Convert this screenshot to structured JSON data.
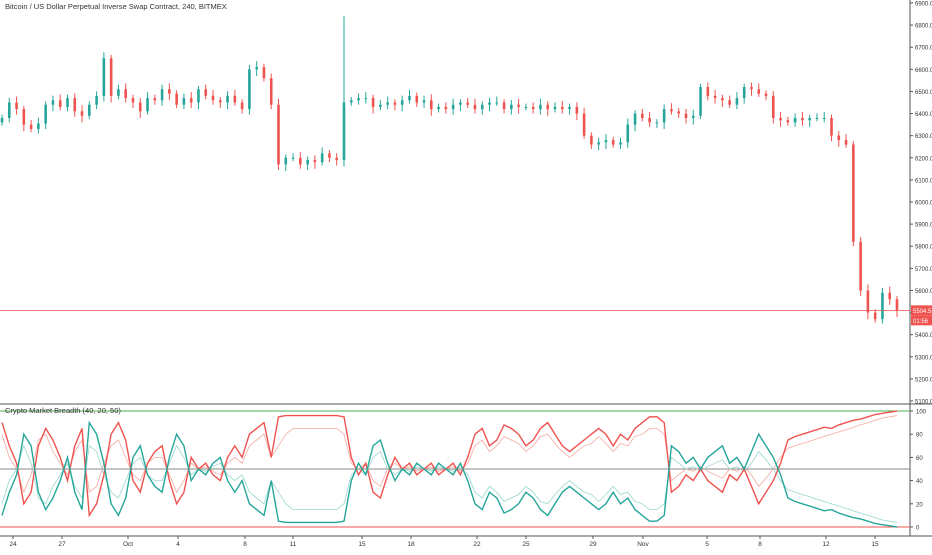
{
  "chart_data": [
    {
      "type": "candlestick",
      "title": "Bitcoin / US Dollar Perpetual Inverse Swap Contract, 240, BITMEX",
      "ylim": [
        5100,
        6900
      ],
      "y_ticks": [
        "6900.0",
        "6800.0",
        "6700.0",
        "6600.0",
        "6500.0",
        "6400.0",
        "6300.0",
        "6200.0",
        "6100.0",
        "6000.0",
        "5900.0",
        "5800.0",
        "5700.0",
        "5600.0",
        "5500.0",
        "5400.0",
        "5300.0",
        "5200.0",
        "5100.0"
      ],
      "x_ticks": [
        "24",
        "27",
        "Oct",
        "4",
        "8",
        "11",
        "15",
        "18",
        "22",
        "25",
        "29",
        "Nov",
        "5",
        "8",
        "12",
        "15"
      ],
      "last_price_label": "5504.5",
      "countdown_label": "01:56",
      "colors": {
        "up": "#26a69a",
        "down": "#ef5350",
        "price_line": "#ef5350"
      },
      "close_series": [
        6380,
        6450,
        6420,
        6350,
        6330,
        6355,
        6440,
        6460,
        6430,
        6470,
        6410,
        6390,
        6440,
        6480,
        6650,
        6480,
        6510,
        6470,
        6450,
        6410,
        6470,
        6460,
        6510,
        6490,
        6440,
        6470,
        6450,
        6510,
        6480,
        6460,
        6450,
        6480,
        6450,
        6420,
        6600,
        6610,
        6560,
        6440,
        6170,
        6200,
        6200,
        6170,
        6190,
        6180,
        6220,
        6200,
        6190,
        6450,
        6460,
        6470,
        6470,
        6430,
        6440,
        6450,
        6440,
        6460,
        6480,
        6450,
        6460,
        6420,
        6430,
        6420,
        6440,
        6450,
        6440,
        6420,
        6440,
        6450,
        6450,
        6420,
        6440,
        6430,
        6430,
        6420,
        6440,
        6420,
        6430,
        6420,
        6430,
        6400,
        6300,
        6260,
        6270,
        6280,
        6260,
        6270,
        6350,
        6400,
        6380,
        6360,
        6360,
        6420,
        6410,
        6400,
        6380,
        6390,
        6520,
        6480,
        6470,
        6460,
        6440,
        6470,
        6520,
        6510,
        6490,
        6480,
        6380,
        6370,
        6360,
        6380,
        6370,
        6380,
        6380,
        6380,
        6300,
        6280,
        6260,
        5820,
        5600,
        5500,
        5470,
        5590,
        5560,
        5510
      ],
      "volume_spikes": [
        {
          "x_index": 47,
          "high": 6840
        }
      ]
    },
    {
      "type": "line",
      "title": "Crypto Market Breadth (40, 20, 50)",
      "ylim": [
        0,
        100
      ],
      "y_ticks": [
        "100",
        "80",
        "60",
        "40",
        "20",
        "0"
      ],
      "reference_lines": [
        {
          "value": 100,
          "color": "#4caf50"
        },
        {
          "value": 50,
          "color": "#888888"
        },
        {
          "value": 0,
          "color": "#ef5350"
        }
      ],
      "series": [
        {
          "color": "#ef5350",
          "values": [
            90,
            70,
            55,
            20,
            30,
            70,
            85,
            75,
            60,
            40,
            70,
            85,
            10,
            20,
            45,
            80,
            90,
            75,
            40,
            30,
            55,
            65,
            70,
            40,
            20,
            30,
            60,
            50,
            55,
            45,
            40,
            60,
            70,
            60,
            80,
            85,
            90,
            60,
            95,
            96,
            96,
            96,
            96,
            96,
            96,
            96,
            96,
            95,
            60,
            45,
            55,
            30,
            25,
            45,
            60,
            50,
            55,
            45,
            50,
            55,
            45,
            50,
            55,
            45,
            60,
            80,
            85,
            70,
            75,
            88,
            85,
            80,
            70,
            75,
            85,
            90,
            80,
            70,
            65,
            70,
            75,
            80,
            85,
            80,
            70,
            80,
            75,
            85,
            90,
            95,
            95,
            90,
            30,
            35,
            45,
            40,
            50,
            40,
            35,
            30,
            45,
            40,
            50,
            35,
            20,
            30,
            40,
            55,
            75,
            78,
            80,
            82,
            84,
            86,
            85,
            88,
            90,
            92,
            93,
            95,
            97,
            98,
            99,
            100
          ]
        },
        {
          "color": "#26a69a",
          "values": [
            10,
            30,
            45,
            80,
            70,
            30,
            15,
            25,
            40,
            60,
            30,
            15,
            90,
            80,
            55,
            20,
            10,
            25,
            60,
            70,
            45,
            35,
            30,
            60,
            80,
            70,
            40,
            50,
            45,
            55,
            60,
            40,
            30,
            40,
            20,
            15,
            10,
            40,
            5,
            4,
            4,
            4,
            4,
            4,
            4,
            4,
            4,
            5,
            40,
            55,
            45,
            70,
            75,
            55,
            40,
            50,
            45,
            55,
            50,
            45,
            55,
            50,
            45,
            55,
            40,
            20,
            15,
            30,
            25,
            12,
            15,
            20,
            30,
            25,
            15,
            10,
            20,
            30,
            35,
            30,
            25,
            20,
            15,
            20,
            30,
            20,
            25,
            15,
            10,
            5,
            5,
            10,
            70,
            65,
            55,
            60,
            50,
            60,
            65,
            70,
            55,
            60,
            50,
            65,
            80,
            70,
            60,
            45,
            25,
            22,
            20,
            18,
            16,
            14,
            15,
            12,
            10,
            8,
            7,
            5,
            3,
            2,
            1,
            0
          ]
        }
      ],
      "faded_series": [
        {
          "color": "#f4a196",
          "values": [
            80,
            60,
            50,
            30,
            45,
            75,
            80,
            65,
            55,
            45,
            65,
            75,
            30,
            35,
            55,
            70,
            75,
            60,
            45,
            40,
            55,
            60,
            60,
            45,
            30,
            40,
            55,
            50,
            52,
            48,
            45,
            55,
            60,
            55,
            70,
            75,
            80,
            60,
            70,
            80,
            85,
            85,
            85,
            85,
            85,
            85,
            85,
            80,
            55,
            50,
            55,
            40,
            35,
            50,
            55,
            50,
            52,
            48,
            50,
            52,
            48,
            50,
            52,
            48,
            55,
            70,
            75,
            65,
            70,
            78,
            75,
            72,
            65,
            70,
            78,
            80,
            72,
            65,
            60,
            65,
            70,
            72,
            78,
            72,
            65,
            72,
            70,
            78,
            80,
            85,
            85,
            80,
            40,
            45,
            50,
            48,
            52,
            48,
            45,
            42,
            50,
            48,
            52,
            45,
            35,
            42,
            50,
            60,
            68,
            70,
            72,
            74,
            76,
            78,
            80,
            82,
            84,
            86,
            88,
            90,
            92,
            94,
            95,
            96
          ]
        },
        {
          "color": "#8fd4c8",
          "values": [
            20,
            40,
            50,
            70,
            55,
            25,
            20,
            35,
            45,
            55,
            35,
            25,
            70,
            65,
            45,
            30,
            25,
            40,
            55,
            60,
            45,
            40,
            40,
            55,
            70,
            60,
            45,
            50,
            48,
            52,
            55,
            45,
            40,
            45,
            30,
            25,
            20,
            40,
            30,
            20,
            15,
            15,
            15,
            15,
            15,
            15,
            15,
            20,
            45,
            50,
            45,
            60,
            65,
            50,
            45,
            50,
            48,
            52,
            50,
            48,
            52,
            50,
            48,
            52,
            45,
            30,
            25,
            35,
            30,
            22,
            25,
            28,
            35,
            30,
            22,
            20,
            28,
            35,
            40,
            35,
            30,
            28,
            22,
            28,
            35,
            28,
            30,
            22,
            20,
            15,
            15,
            20,
            60,
            55,
            50,
            52,
            48,
            52,
            55,
            58,
            50,
            52,
            48,
            55,
            65,
            58,
            50,
            40,
            32,
            30,
            28,
            26,
            24,
            22,
            20,
            18,
            16,
            14,
            12,
            10,
            8,
            6,
            5,
            4
          ]
        }
      ]
    }
  ]
}
